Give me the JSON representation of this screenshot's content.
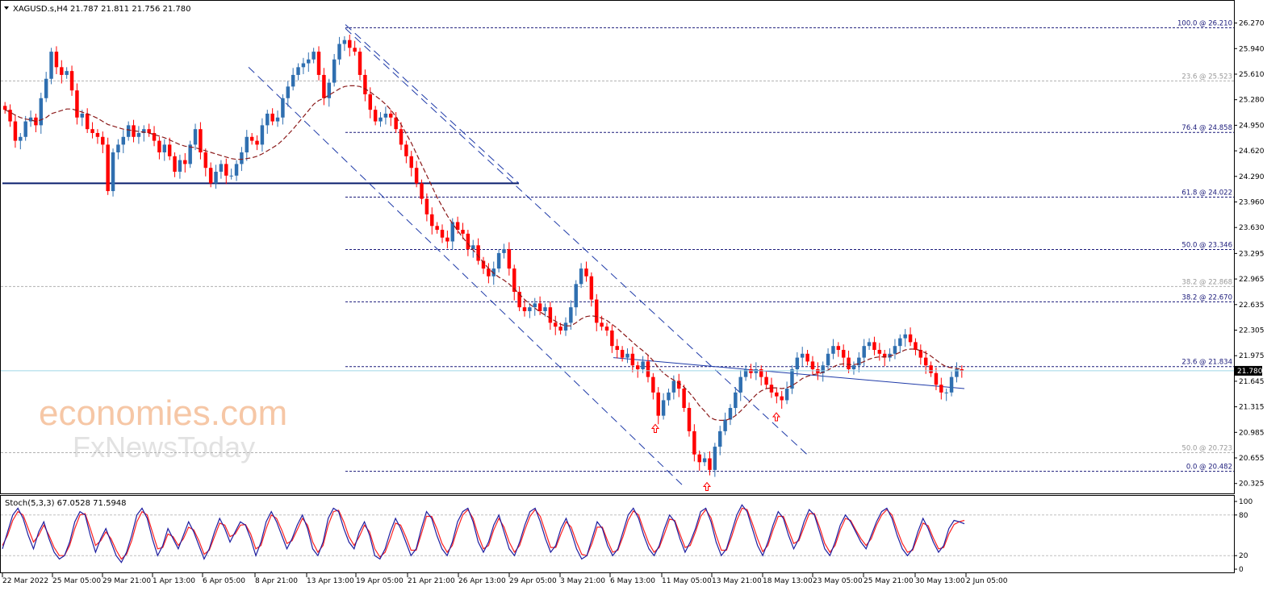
{
  "header": {
    "symbol": "XAGUSD.s,H4",
    "ohlc": "21.787 21.811 21.756 21.780"
  },
  "stochastic": {
    "label": "Stoch(5,3,3) 67.0528 71.5948",
    "levels": [
      "100",
      "80",
      "20",
      "0"
    ],
    "k_series": [
      30,
      55,
      80,
      90,
      75,
      50,
      30,
      55,
      70,
      45,
      25,
      15,
      20,
      40,
      70,
      85,
      80,
      50,
      25,
      45,
      60,
      40,
      20,
      10,
      25,
      50,
      80,
      90,
      75,
      45,
      20,
      35,
      60,
      45,
      30,
      50,
      70,
      55,
      35,
      15,
      30,
      55,
      75,
      60,
      40,
      55,
      70,
      65,
      45,
      20,
      40,
      70,
      85,
      70,
      50,
      30,
      45,
      65,
      80,
      60,
      30,
      20,
      40,
      75,
      90,
      85,
      60,
      40,
      30,
      55,
      70,
      50,
      20,
      15,
      30,
      55,
      75,
      60,
      40,
      20,
      30,
      60,
      85,
      75,
      50,
      30,
      20,
      40,
      70,
      85,
      90,
      70,
      40,
      25,
      40,
      65,
      80,
      55,
      30,
      20,
      40,
      65,
      85,
      90,
      70,
      45,
      25,
      35,
      60,
      75,
      55,
      30,
      15,
      20,
      45,
      70,
      60,
      35,
      20,
      30,
      55,
      80,
      90,
      75,
      50,
      30,
      20,
      35,
      60,
      80,
      70,
      45,
      25,
      40,
      60,
      85,
      90,
      70,
      40,
      20,
      30,
      55,
      80,
      95,
      85,
      60,
      35,
      20,
      40,
      65,
      85,
      75,
      50,
      30,
      45,
      70,
      88,
      80,
      55,
      30,
      20,
      40,
      65,
      80,
      70,
      55,
      40,
      30,
      50,
      70,
      85,
      90,
      75,
      50,
      30,
      20,
      30,
      55,
      75,
      60,
      40,
      25,
      35,
      60,
      72,
      70,
      67
    ],
    "d_series": [
      35,
      50,
      72,
      85,
      80,
      60,
      40,
      50,
      65,
      50,
      32,
      20,
      20,
      35,
      60,
      80,
      82,
      60,
      35,
      42,
      55,
      45,
      28,
      15,
      22,
      42,
      70,
      85,
      80,
      55,
      30,
      32,
      52,
      48,
      35,
      45,
      62,
      58,
      42,
      22,
      28,
      48,
      68,
      65,
      48,
      52,
      65,
      66,
      52,
      30,
      35,
      60,
      80,
      75,
      58,
      38,
      42,
      58,
      75,
      65,
      40,
      25,
      35,
      65,
      85,
      87,
      70,
      48,
      35,
      48,
      65,
      55,
      30,
      18,
      25,
      45,
      68,
      65,
      48,
      28,
      28,
      52,
      78,
      78,
      60,
      38,
      25,
      35,
      60,
      80,
      88,
      75,
      50,
      30,
      35,
      58,
      75,
      62,
      40,
      25,
      35,
      58,
      78,
      88,
      78,
      55,
      32,
      32,
      52,
      70,
      62,
      40,
      22,
      20,
      38,
      62,
      62,
      42,
      25,
      28,
      48,
      72,
      86,
      80,
      58,
      38,
      25,
      32,
      52,
      74,
      72,
      52,
      32,
      35,
      55,
      78,
      88,
      76,
      50,
      28,
      28,
      48,
      72,
      90,
      88,
      68,
      45,
      26,
      35,
      58,
      78,
      78,
      58,
      38,
      42,
      62,
      82,
      82,
      62,
      38,
      25,
      35,
      58,
      75,
      72,
      58,
      45,
      35,
      45,
      65,
      80,
      88,
      80,
      58,
      38,
      25,
      28,
      48,
      68,
      64,
      46,
      30,
      32,
      52,
      66,
      70,
      72
    ]
  },
  "chart_data": {
    "type": "line",
    "subtype": "candlestick",
    "symbol": "XAGUSD.s",
    "timeframe": "H4",
    "last_price": 21.78,
    "ylim": [
      20.27,
      26.38
    ],
    "y_ticks": [
      26.27,
      25.94,
      25.61,
      25.28,
      24.95,
      24.62,
      24.29,
      23.96,
      23.63,
      23.295,
      22.965,
      22.635,
      22.305,
      21.975,
      21.645,
      21.315,
      20.985,
      20.655,
      20.325
    ],
    "y_tick_labels": [
      "26.270",
      "25.940",
      "25.610",
      "25.280",
      "24.950",
      "24.620",
      "24.290",
      "23.960",
      "23.630",
      "23.295",
      "22.965",
      "22.635",
      "22.305",
      "21.975",
      "21.645",
      "21.315",
      "20.985",
      "20.655",
      "20.325"
    ],
    "x_tick_labels": [
      "22 Mar 2022",
      "25 Mar 05:00",
      "29 Mar 21:00",
      "1 Apr 13:00",
      "6 Apr 05:00",
      "8 Apr 21:00",
      "13 Apr 13:00",
      "19 Apr 05:00",
      "21 Apr 21:00",
      "26 Apr 13:00",
      "29 Apr 05:00",
      "3 May 21:00",
      "6 May 13:00",
      "11 May 05:00",
      "13 May 21:00",
      "18 May 13:00",
      "23 May 05:00",
      "25 May 21:00",
      "30 May 13:00",
      "2 Jun 05:00"
    ],
    "series": [
      {
        "name": "",
        "type": "close",
        "values": [
          25.15,
          25.0,
          24.75,
          24.8,
          25.0,
          25.05,
          24.95,
          25.3,
          25.55,
          25.9,
          25.7,
          25.6,
          25.65,
          25.4,
          25.05,
          25.1,
          24.9,
          24.85,
          24.8,
          24.7,
          24.1,
          24.6,
          24.7,
          24.8,
          24.95,
          24.8,
          24.85,
          24.9,
          24.85,
          24.75,
          24.6,
          24.7,
          24.55,
          24.35,
          24.5,
          24.45,
          24.7,
          24.9,
          24.6,
          24.4,
          24.2,
          24.35,
          24.45,
          24.3,
          24.3,
          24.45,
          24.6,
          24.8,
          24.75,
          24.7,
          24.95,
          25.1,
          25.0,
          25.05,
          25.3,
          25.45,
          25.6,
          25.7,
          25.75,
          25.8,
          25.9,
          25.6,
          25.3,
          25.5,
          25.8,
          26.0,
          26.05,
          25.95,
          25.9,
          25.6,
          25.35,
          25.15,
          25.0,
          25.05,
          25.1,
          25.05,
          24.9,
          24.7,
          24.55,
          24.4,
          24.2,
          24.0,
          23.8,
          23.65,
          23.6,
          23.5,
          23.45,
          23.7,
          23.6,
          23.55,
          23.35,
          23.4,
          23.2,
          23.1,
          23.0,
          23.1,
          23.3,
          23.35,
          23.1,
          22.8,
          22.6,
          22.55,
          22.6,
          22.65,
          22.55,
          22.6,
          22.4,
          22.35,
          22.3,
          22.4,
          22.6,
          22.9,
          23.1,
          23.0,
          22.7,
          22.4,
          22.35,
          22.3,
          22.1,
          22.05,
          21.95,
          22.0,
          21.85,
          21.8,
          21.9,
          21.7,
          21.5,
          21.2,
          21.4,
          21.5,
          21.65,
          21.55,
          21.3,
          21.0,
          20.7,
          20.6,
          20.65,
          20.5,
          20.8,
          21.0,
          21.15,
          21.3,
          21.5,
          21.7,
          21.8,
          21.75,
          21.8,
          21.7,
          21.6,
          21.5,
          21.45,
          21.4,
          21.55,
          21.8,
          21.95,
          22.0,
          21.9,
          21.8,
          21.75,
          21.85,
          22.0,
          22.1,
          22.05,
          21.95,
          21.8,
          21.85,
          21.95,
          22.1,
          22.15,
          22.05,
          22.0,
          21.95,
          22.0,
          22.1,
          22.2,
          22.25,
          22.15,
          22.05,
          21.95,
          21.85,
          21.75,
          21.6,
          21.5,
          21.5,
          21.7,
          21.8,
          21.78
        ]
      },
      {
        "name": "",
        "type": "moving-average",
        "values": [
          25.15,
          25.12,
          25.08,
          25.05,
          25.03,
          25.02,
          25.0,
          25.02,
          25.05,
          25.1,
          25.12,
          25.14,
          25.16,
          25.16,
          25.14,
          25.12,
          25.1,
          25.07,
          25.04,
          25.0,
          24.96,
          24.94,
          24.92,
          24.9,
          24.89,
          24.88,
          24.87,
          24.86,
          24.85,
          24.83,
          24.81,
          24.79,
          24.76,
          24.73,
          24.7,
          24.68,
          24.67,
          24.66,
          24.64,
          24.62,
          24.6,
          24.58,
          24.56,
          24.54,
          24.52,
          24.51,
          24.51,
          24.52,
          24.53,
          24.55,
          24.58,
          24.62,
          24.66,
          24.7,
          24.76,
          24.83,
          24.9,
          24.98,
          25.06,
          25.14,
          25.22,
          25.27,
          25.3,
          25.34,
          25.38,
          25.42,
          25.45,
          25.46,
          25.46,
          25.45,
          25.42,
          25.38,
          25.33,
          25.28,
          25.22,
          25.15,
          25.06,
          24.96,
          24.84,
          24.72,
          24.58,
          24.44,
          24.3,
          24.16,
          24.02,
          23.9,
          23.78,
          23.68,
          23.59,
          23.5,
          23.42,
          23.34,
          23.26,
          23.18,
          23.1,
          23.04,
          22.99,
          22.95,
          22.9,
          22.84,
          22.77,
          22.7,
          22.64,
          22.59,
          22.54,
          22.5,
          22.46,
          22.42,
          22.38,
          22.36,
          22.36,
          22.4,
          22.45,
          22.48,
          22.49,
          22.48,
          22.46,
          22.43,
          22.38,
          22.33,
          22.27,
          22.21,
          22.15,
          22.09,
          22.04,
          21.98,
          21.91,
          21.82,
          21.75,
          21.7,
          21.66,
          21.62,
          21.57,
          21.5,
          21.42,
          21.33,
          21.26,
          21.18,
          21.15,
          21.14,
          21.14,
          21.16,
          21.2,
          21.26,
          21.33,
          21.4,
          21.47,
          21.52,
          21.55,
          21.56,
          21.56,
          21.55,
          21.56,
          21.59,
          21.63,
          21.68,
          21.71,
          21.73,
          21.74,
          21.76,
          21.79,
          21.83,
          21.86,
          21.87,
          21.86,
          21.86,
          21.87,
          21.9,
          21.93,
          21.95,
          21.96,
          21.96,
          21.97,
          21.99,
          22.02,
          22.05,
          22.06,
          22.06,
          22.04,
          22.01,
          21.97,
          21.92,
          21.87,
          21.83,
          21.82,
          21.81,
          21.8
        ]
      }
    ],
    "fibonacci_upper": [
      {
        "label": "100.0 @ 26.210",
        "price": 26.21
      },
      {
        "label": "76.4 @ 24.858",
        "price": 24.858
      },
      {
        "label": "61.8 @ 24.022",
        "price": 24.022
      },
      {
        "label": "50.0 @ 23.346",
        "price": 23.346
      },
      {
        "label": "38.2 @ 22.670",
        "price": 22.67
      },
      {
        "label": "23.6 @ 21.834",
        "price": 21.834
      }
    ],
    "fibonacci_lower": [
      {
        "label": "23.6 @ 25.523",
        "price": 25.523
      },
      {
        "label": "38.2 @ 22.868",
        "price": 22.868
      },
      {
        "label": "50.0 @ 20.723",
        "price": 20.723
      },
      {
        "label": "0.0 @ 20.482",
        "price": 20.482
      }
    ],
    "support_level": 24.2,
    "grid": false
  },
  "watermark": {
    "line1": "economies.com",
    "line2": "FxNewsToday"
  },
  "colors": {
    "up": "#2f6fb0",
    "down": "#ff0000",
    "ma": "#8b1a1a",
    "channel": "#1e3aa8",
    "fib_upper": "#1a1a7a",
    "fib_lower": "#b0b0b0",
    "support": "#0a1f6e",
    "stoch_k": "#1e1ea0",
    "stoch_d": "#ff2020",
    "current_price_line": "#9fd6e8"
  }
}
